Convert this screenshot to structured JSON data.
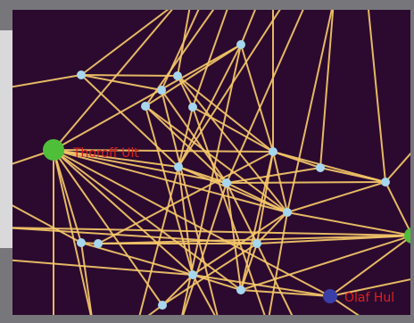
{
  "colors": {
    "background": "#2c0a2f",
    "edge": "#f5c869",
    "node_default": "#a6d7ee",
    "node_green": "#4fbf3a",
    "node_blue": "#3a3fa8",
    "label": "#e0201c"
  },
  "labels": [
    {
      "id": "thoroff",
      "text": "Thoroff Ult"
    },
    {
      "id": "olaf",
      "text": "Olaf Hul"
    }
  ]
}
